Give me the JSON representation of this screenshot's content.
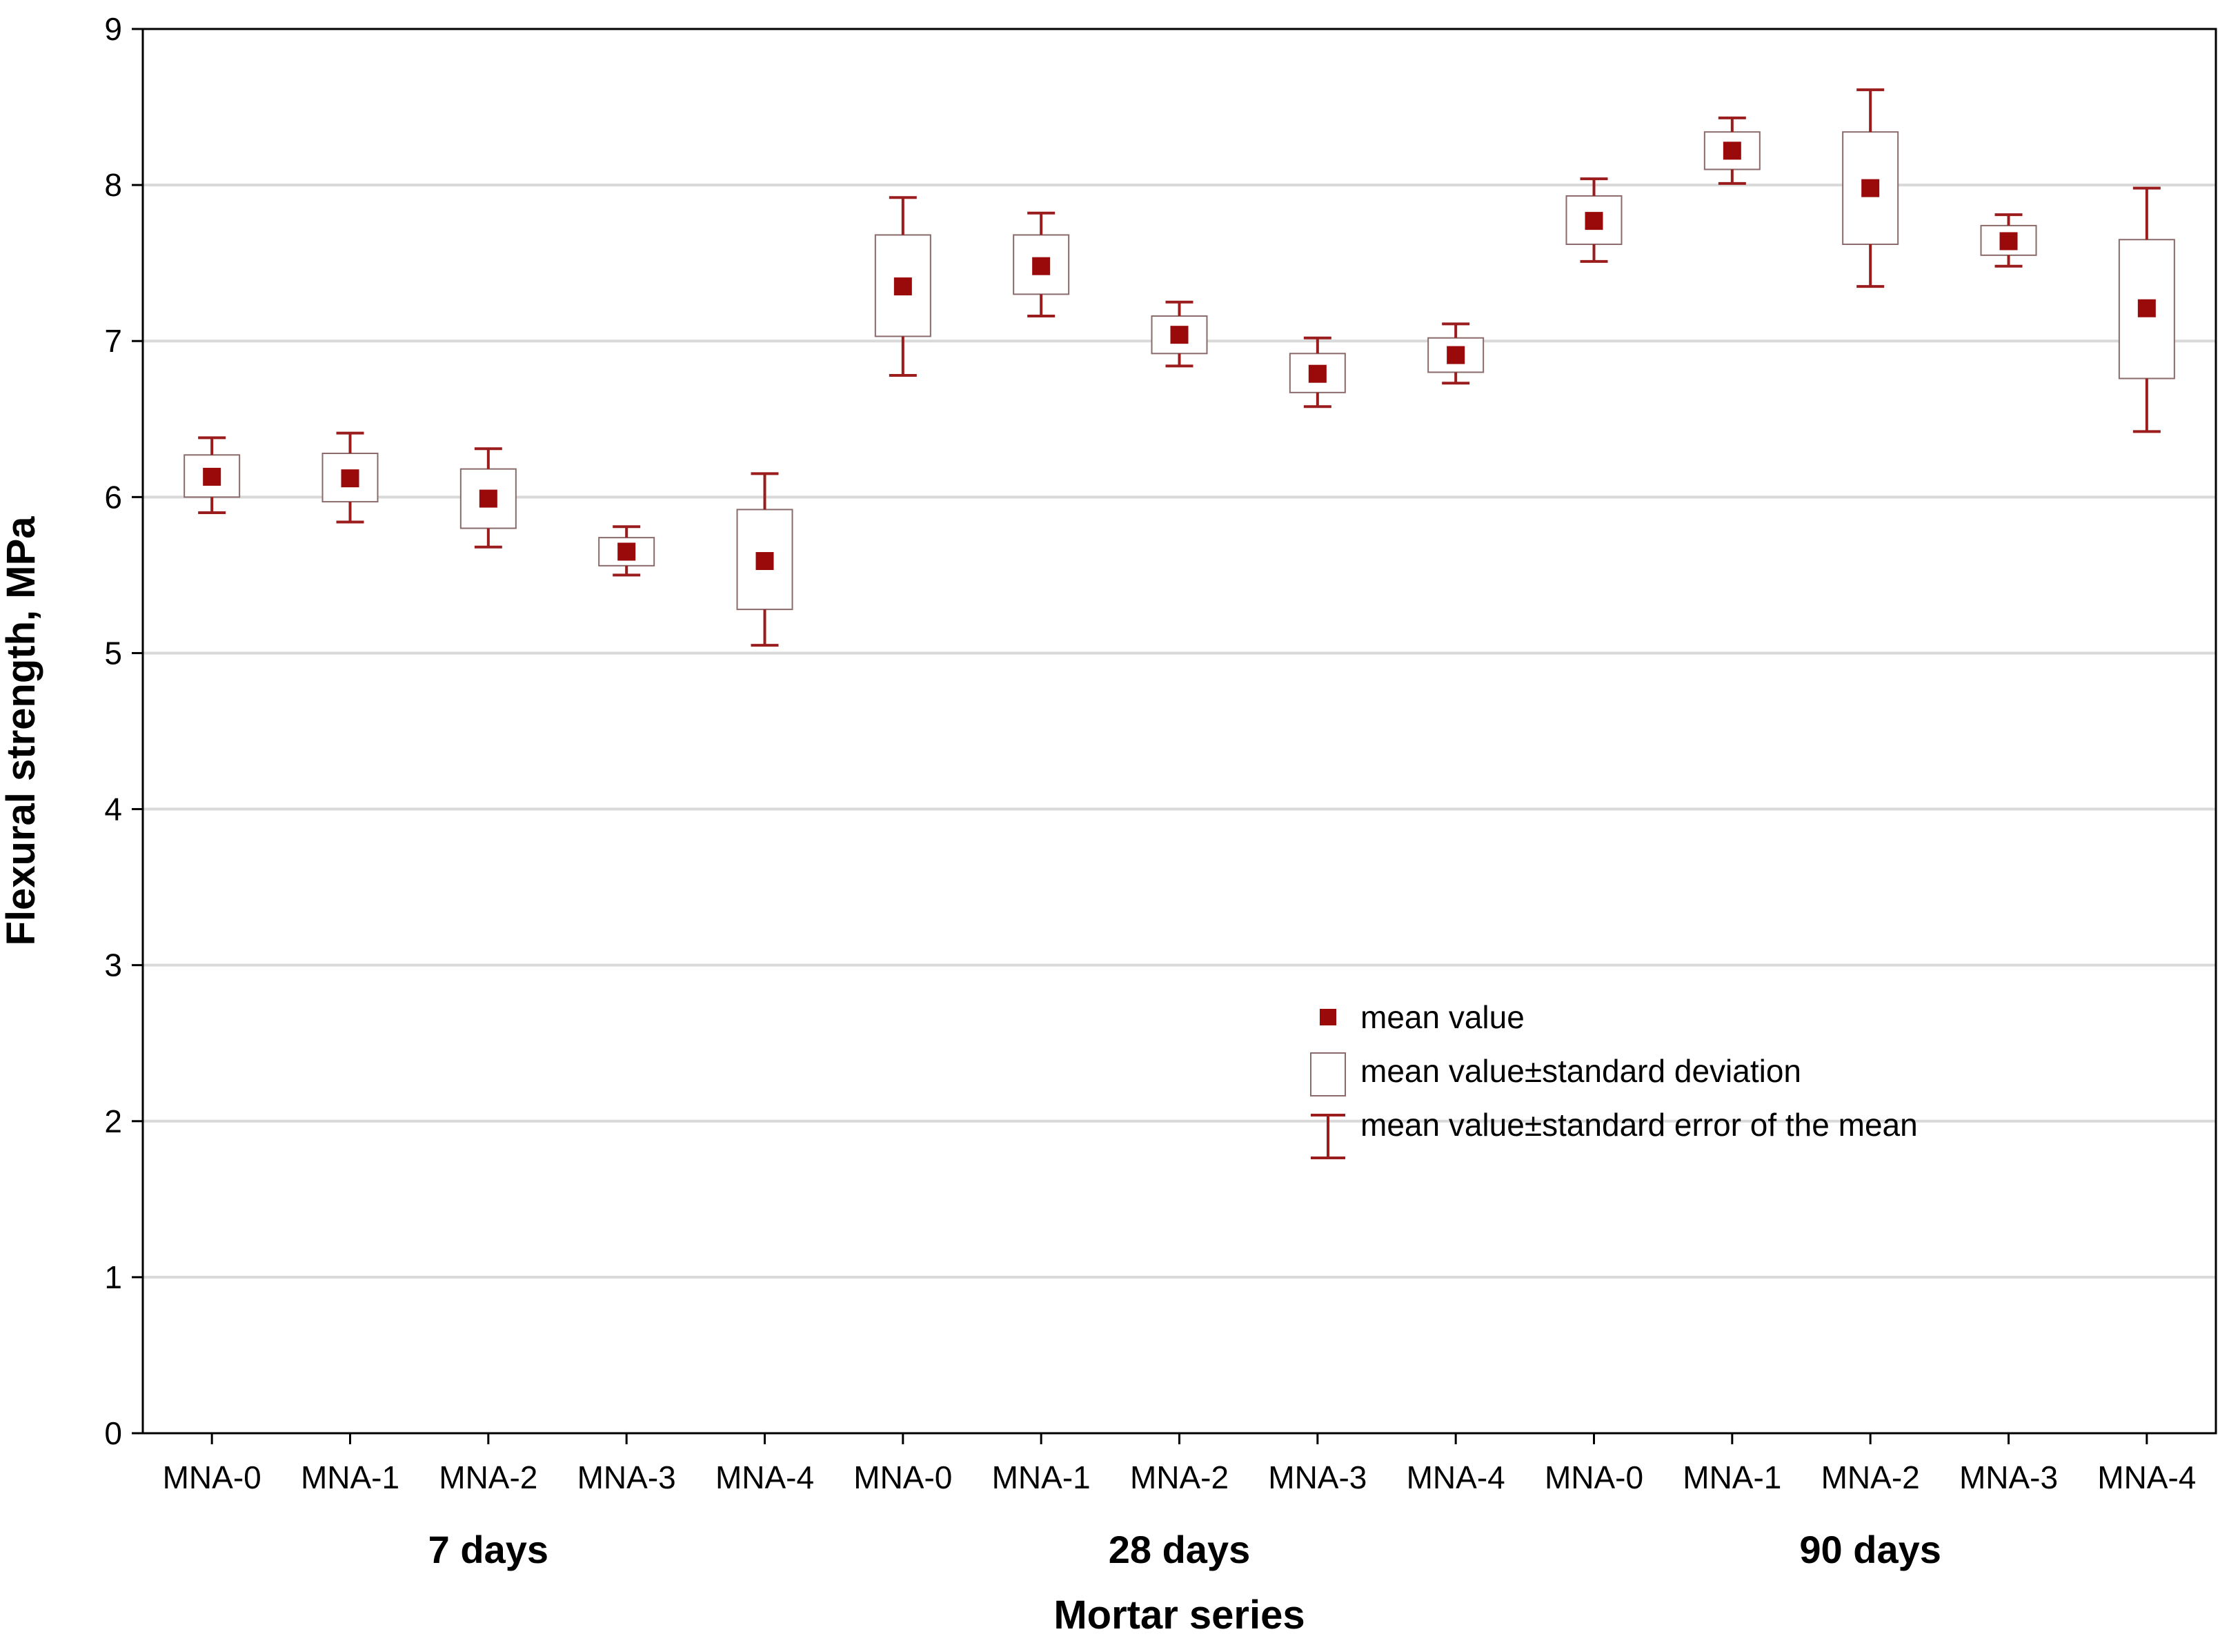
{
  "chart_data": {
    "type": "box",
    "title": "",
    "xlabel": "Mortar series",
    "ylabel": "Flexural strength, MPa",
    "ylim": [
      0,
      9
    ],
    "yticks": [
      0,
      1,
      2,
      3,
      4,
      5,
      6,
      7,
      8,
      9
    ],
    "grid": true,
    "legend_position": "center-right",
    "colors": {
      "marker": "#9b0a0a",
      "whisker": "#9b1c1c",
      "box_edge": "#8a6a6a",
      "grid": "#d9d9d9"
    },
    "groups": [
      {
        "label": "7 days",
        "categories": [
          "MNA-0",
          "MNA-1",
          "MNA-2",
          "MNA-3",
          "MNA-4"
        ]
      },
      {
        "label": "28 days",
        "categories": [
          "MNA-0",
          "MNA-1",
          "MNA-2",
          "MNA-3",
          "MNA-4"
        ]
      },
      {
        "label": "90 days",
        "categories": [
          "MNA-0",
          "MNA-1",
          "MNA-2",
          "MNA-3",
          "MNA-4"
        ]
      }
    ],
    "series": [
      {
        "group": "7 days",
        "category": "MNA-0",
        "mean": 6.13,
        "sd_low": 6.0,
        "sd_high": 6.27,
        "se_low": 5.9,
        "se_high": 6.38
      },
      {
        "group": "7 days",
        "category": "MNA-1",
        "mean": 6.12,
        "sd_low": 5.97,
        "sd_high": 6.28,
        "se_low": 5.84,
        "se_high": 6.41
      },
      {
        "group": "7 days",
        "category": "MNA-2",
        "mean": 5.99,
        "sd_low": 5.8,
        "sd_high": 6.18,
        "se_low": 5.68,
        "se_high": 6.31
      },
      {
        "group": "7 days",
        "category": "MNA-3",
        "mean": 5.65,
        "sd_low": 5.56,
        "sd_high": 5.74,
        "se_low": 5.5,
        "se_high": 5.81
      },
      {
        "group": "7 days",
        "category": "MNA-4",
        "mean": 5.59,
        "sd_low": 5.28,
        "sd_high": 5.92,
        "se_low": 5.05,
        "se_high": 6.15
      },
      {
        "group": "28 days",
        "category": "MNA-0",
        "mean": 7.35,
        "sd_low": 7.03,
        "sd_high": 7.68,
        "se_low": 6.78,
        "se_high": 7.92
      },
      {
        "group": "28 days",
        "category": "MNA-1",
        "mean": 7.48,
        "sd_low": 7.3,
        "sd_high": 7.68,
        "se_low": 7.16,
        "se_high": 7.82
      },
      {
        "group": "28 days",
        "category": "MNA-2",
        "mean": 7.04,
        "sd_low": 6.92,
        "sd_high": 7.16,
        "se_low": 6.84,
        "se_high": 7.25
      },
      {
        "group": "28 days",
        "category": "MNA-3",
        "mean": 6.79,
        "sd_low": 6.67,
        "sd_high": 6.92,
        "se_low": 6.58,
        "se_high": 7.02
      },
      {
        "group": "28 days",
        "category": "MNA-4",
        "mean": 6.91,
        "sd_low": 6.8,
        "sd_high": 7.02,
        "se_low": 6.73,
        "se_high": 7.11
      },
      {
        "group": "90 days",
        "category": "MNA-0",
        "mean": 7.77,
        "sd_low": 7.62,
        "sd_high": 7.93,
        "se_low": 7.51,
        "se_high": 8.04
      },
      {
        "group": "90 days",
        "category": "MNA-1",
        "mean": 8.22,
        "sd_low": 8.1,
        "sd_high": 8.34,
        "se_low": 8.01,
        "se_high": 8.43
      },
      {
        "group": "90 days",
        "category": "MNA-2",
        "mean": 7.98,
        "sd_low": 7.62,
        "sd_high": 8.34,
        "se_low": 7.35,
        "se_high": 8.61
      },
      {
        "group": "90 days",
        "category": "MNA-3",
        "mean": 7.64,
        "sd_low": 7.55,
        "sd_high": 7.74,
        "se_low": 7.48,
        "se_high": 7.81
      },
      {
        "group": "90 days",
        "category": "MNA-4",
        "mean": 7.21,
        "sd_low": 6.76,
        "sd_high": 7.65,
        "se_low": 6.42,
        "se_high": 7.98
      }
    ],
    "legend": [
      {
        "symbol": "marker",
        "text": "mean value"
      },
      {
        "symbol": "box",
        "text": "mean value±standard deviation"
      },
      {
        "symbol": "whisker",
        "text": "mean value±standard error of the mean"
      }
    ]
  }
}
